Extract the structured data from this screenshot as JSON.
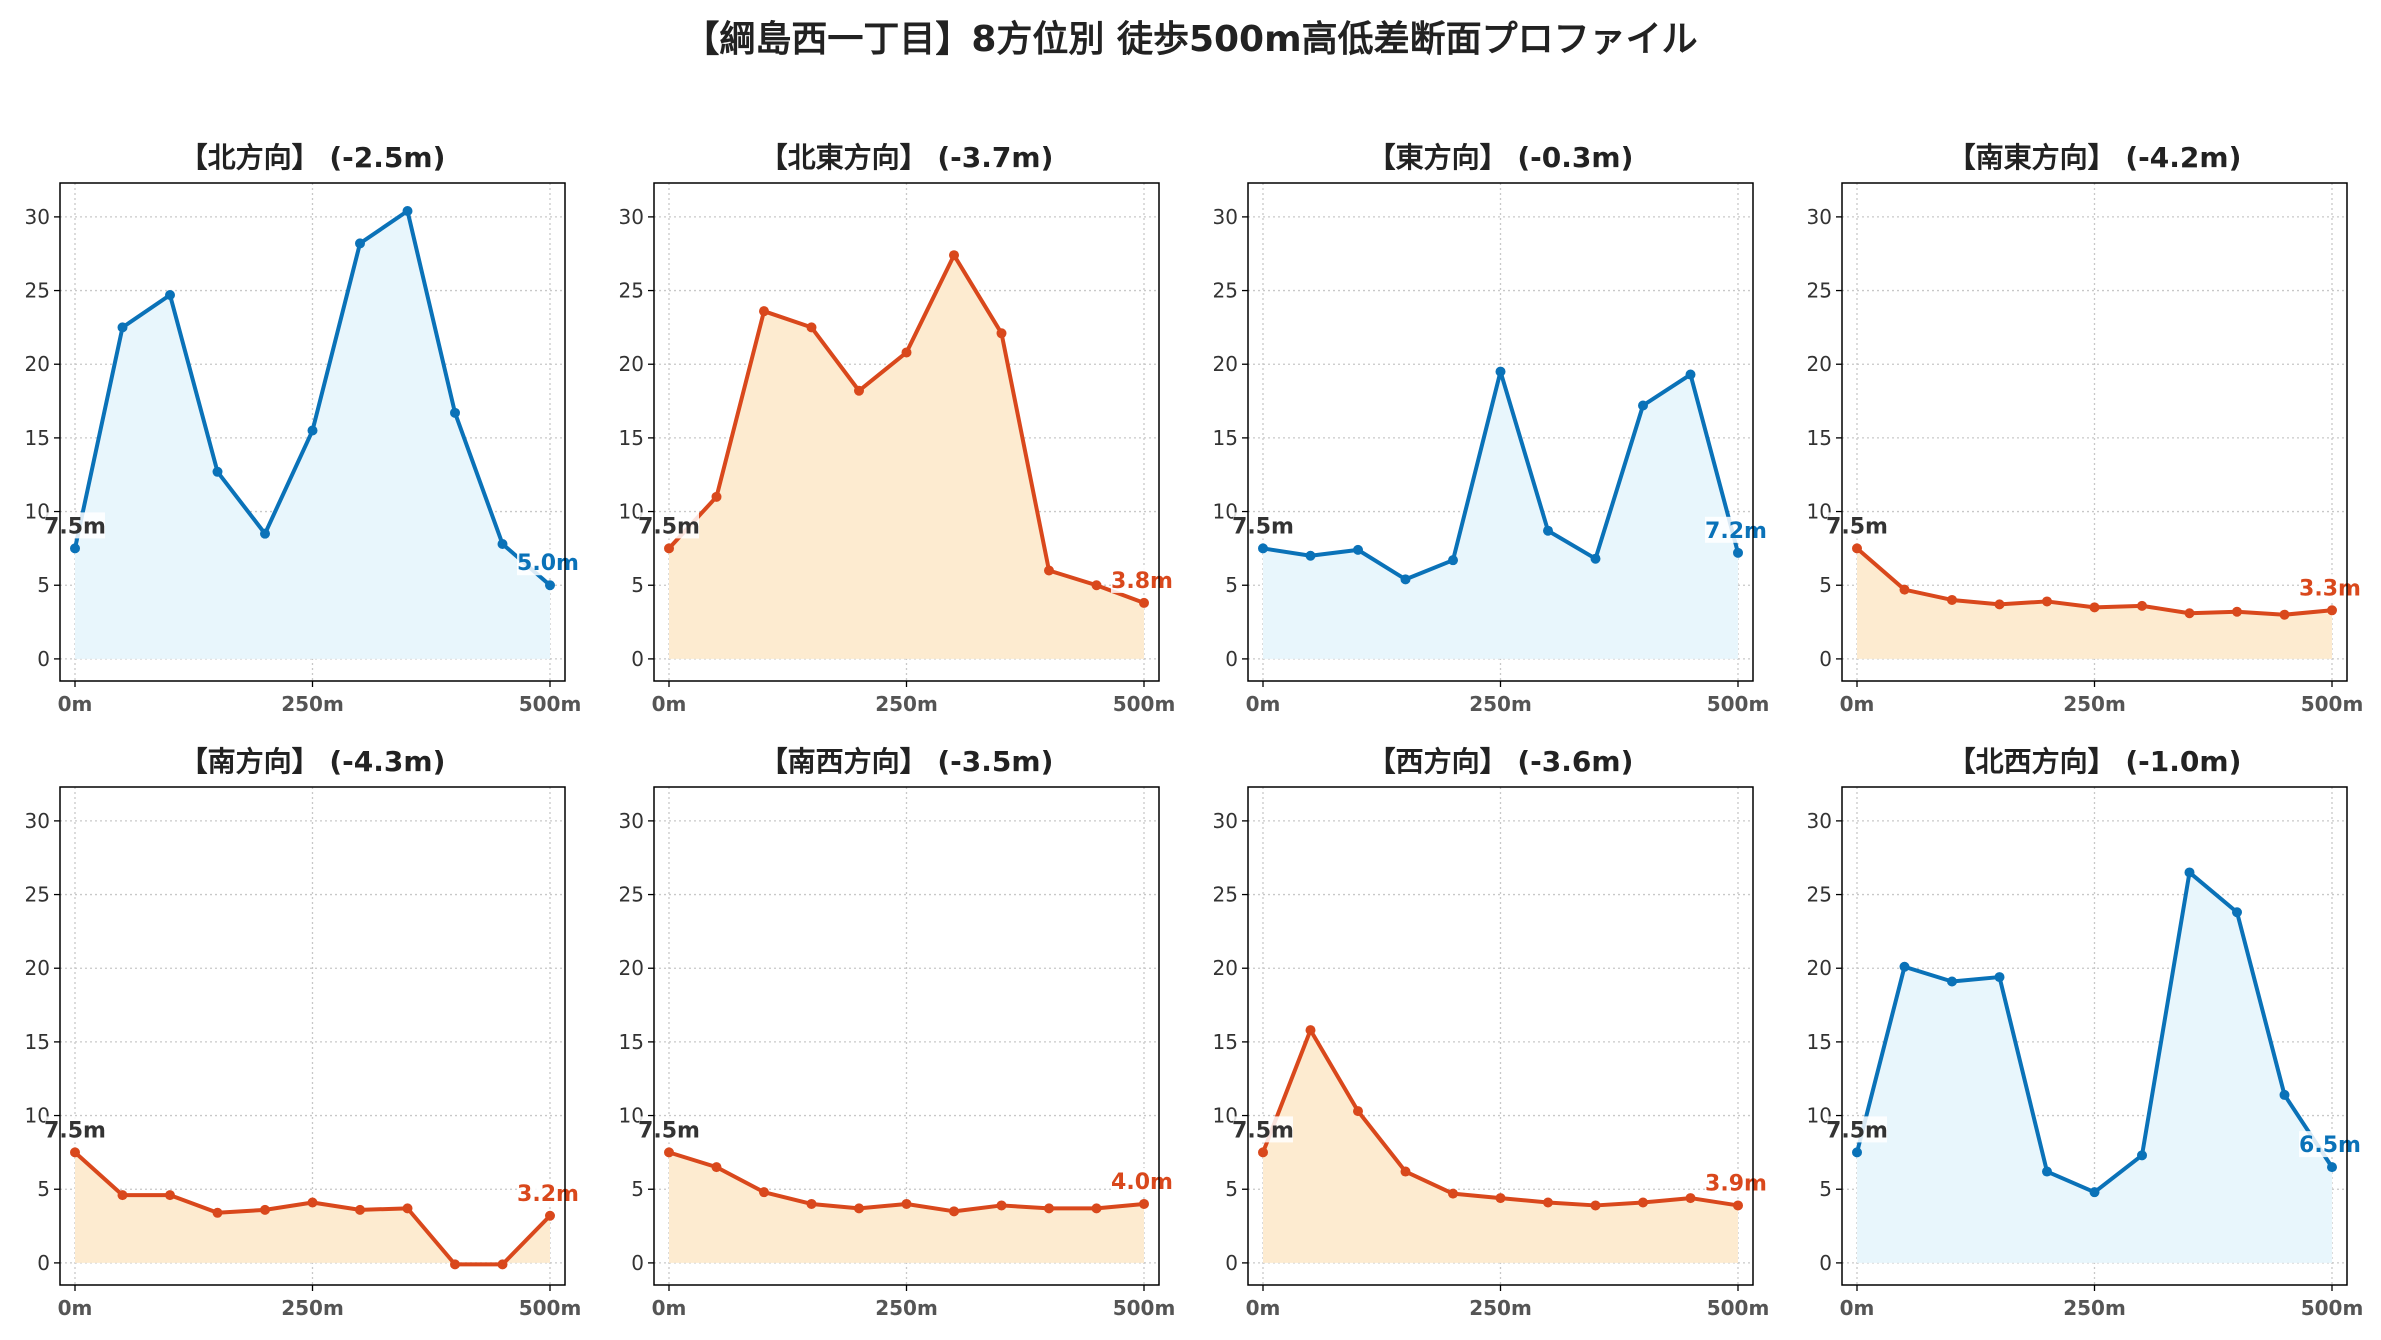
{
  "title": "【綱島西一丁目】8方位別 徒歩500m高低差断面プロファイル",
  "colors": {
    "down_line": "#d9481c",
    "down_fill": "#fdebd0",
    "up_line": "#0a72b8",
    "up_fill": "#e8f6fc",
    "start_label": "#333333"
  },
  "chart_data": [
    {
      "type": "area",
      "title": "【北方向】 (-2.5m)",
      "style": "blue",
      "x": [
        0,
        50,
        100,
        150,
        200,
        250,
        300,
        350,
        400,
        450,
        500
      ],
      "values": [
        7.5,
        22.5,
        24.7,
        12.7,
        8.5,
        15.5,
        28.2,
        30.4,
        16.7,
        7.8,
        5.0
      ],
      "start_label": "7.5m",
      "end_label": "5.0m",
      "xticks": [
        "0m",
        "250m",
        "500m"
      ],
      "yticks": [
        0,
        5,
        10,
        15,
        20,
        25,
        30
      ],
      "ylim": [
        -1.5,
        32.3
      ],
      "grid": true
    },
    {
      "type": "area",
      "title": "【北東方向】 (-3.7m)",
      "style": "orange",
      "x": [
        0,
        50,
        100,
        150,
        200,
        250,
        300,
        350,
        400,
        450,
        500
      ],
      "values": [
        7.5,
        11.0,
        23.6,
        22.5,
        18.2,
        20.8,
        27.4,
        22.1,
        6.0,
        5.0,
        3.8
      ],
      "start_label": "7.5m",
      "end_label": "3.8m",
      "xticks": [
        "0m",
        "250m",
        "500m"
      ],
      "yticks": [
        0,
        5,
        10,
        15,
        20,
        25,
        30
      ],
      "ylim": [
        -1.5,
        32.3
      ],
      "grid": true
    },
    {
      "type": "area",
      "title": "【東方向】 (-0.3m)",
      "style": "blue",
      "x": [
        0,
        50,
        100,
        150,
        200,
        250,
        300,
        350,
        400,
        450,
        500
      ],
      "values": [
        7.5,
        7.0,
        7.4,
        5.4,
        6.7,
        19.5,
        8.7,
        6.8,
        17.2,
        19.3,
        7.2
      ],
      "start_label": "7.5m",
      "end_label": "7.2m",
      "xticks": [
        "0m",
        "250m",
        "500m"
      ],
      "yticks": [
        0,
        5,
        10,
        15,
        20,
        25,
        30
      ],
      "ylim": [
        -1.5,
        32.3
      ],
      "grid": true
    },
    {
      "type": "area",
      "title": "【南東方向】 (-4.2m)",
      "style": "orange",
      "x": [
        0,
        50,
        100,
        150,
        200,
        250,
        300,
        350,
        400,
        450,
        500
      ],
      "values": [
        7.5,
        4.7,
        4.0,
        3.7,
        3.9,
        3.5,
        3.6,
        3.1,
        3.2,
        3.0,
        3.3
      ],
      "start_label": "7.5m",
      "end_label": "3.3m",
      "xticks": [
        "0m",
        "250m",
        "500m"
      ],
      "yticks": [
        0,
        5,
        10,
        15,
        20,
        25,
        30
      ],
      "ylim": [
        -1.5,
        32.3
      ],
      "grid": true
    },
    {
      "type": "area",
      "title": "【南方向】 (-4.3m)",
      "style": "orange",
      "x": [
        0,
        50,
        100,
        150,
        200,
        250,
        300,
        350,
        400,
        450,
        500
      ],
      "values": [
        7.5,
        4.6,
        4.6,
        3.4,
        3.6,
        4.1,
        3.6,
        3.7,
        -0.1,
        -0.1,
        3.2
      ],
      "start_label": "7.5m",
      "end_label": "3.2m",
      "xticks": [
        "0m",
        "250m",
        "500m"
      ],
      "yticks": [
        0,
        5,
        10,
        15,
        20,
        25,
        30
      ],
      "ylim": [
        -1.5,
        32.3
      ],
      "grid": true
    },
    {
      "type": "area",
      "title": "【南西方向】 (-3.5m)",
      "style": "orange",
      "x": [
        0,
        50,
        100,
        150,
        200,
        250,
        300,
        350,
        400,
        450,
        500
      ],
      "values": [
        7.5,
        6.5,
        4.8,
        4.0,
        3.7,
        4.0,
        3.5,
        3.9,
        3.7,
        3.7,
        4.0
      ],
      "start_label": "7.5m",
      "end_label": "4.0m",
      "xticks": [
        "0m",
        "250m",
        "500m"
      ],
      "yticks": [
        0,
        5,
        10,
        15,
        20,
        25,
        30
      ],
      "ylim": [
        -1.5,
        32.3
      ],
      "grid": true
    },
    {
      "type": "area",
      "title": "【西方向】 (-3.6m)",
      "style": "orange",
      "x": [
        0,
        50,
        100,
        150,
        200,
        250,
        300,
        350,
        400,
        450,
        500
      ],
      "values": [
        7.5,
        15.8,
        10.3,
        6.2,
        4.7,
        4.4,
        4.1,
        3.9,
        4.1,
        4.4,
        3.9
      ],
      "start_label": "7.5m",
      "end_label": "3.9m",
      "xticks": [
        "0m",
        "250m",
        "500m"
      ],
      "yticks": [
        0,
        5,
        10,
        15,
        20,
        25,
        30
      ],
      "ylim": [
        -1.5,
        32.3
      ],
      "grid": true
    },
    {
      "type": "area",
      "title": "【北西方向】 (-1.0m)",
      "style": "blue",
      "x": [
        0,
        50,
        100,
        150,
        200,
        250,
        300,
        350,
        400,
        450,
        500
      ],
      "values": [
        7.5,
        20.1,
        19.1,
        19.4,
        6.2,
        4.8,
        7.3,
        26.5,
        23.8,
        11.4,
        6.5
      ],
      "start_label": "7.5m",
      "end_label": "6.5m",
      "xticks": [
        "0m",
        "250m",
        "500m"
      ],
      "yticks": [
        0,
        5,
        10,
        15,
        20,
        25,
        30
      ],
      "ylim": [
        -1.5,
        32.3
      ],
      "grid": true
    }
  ]
}
